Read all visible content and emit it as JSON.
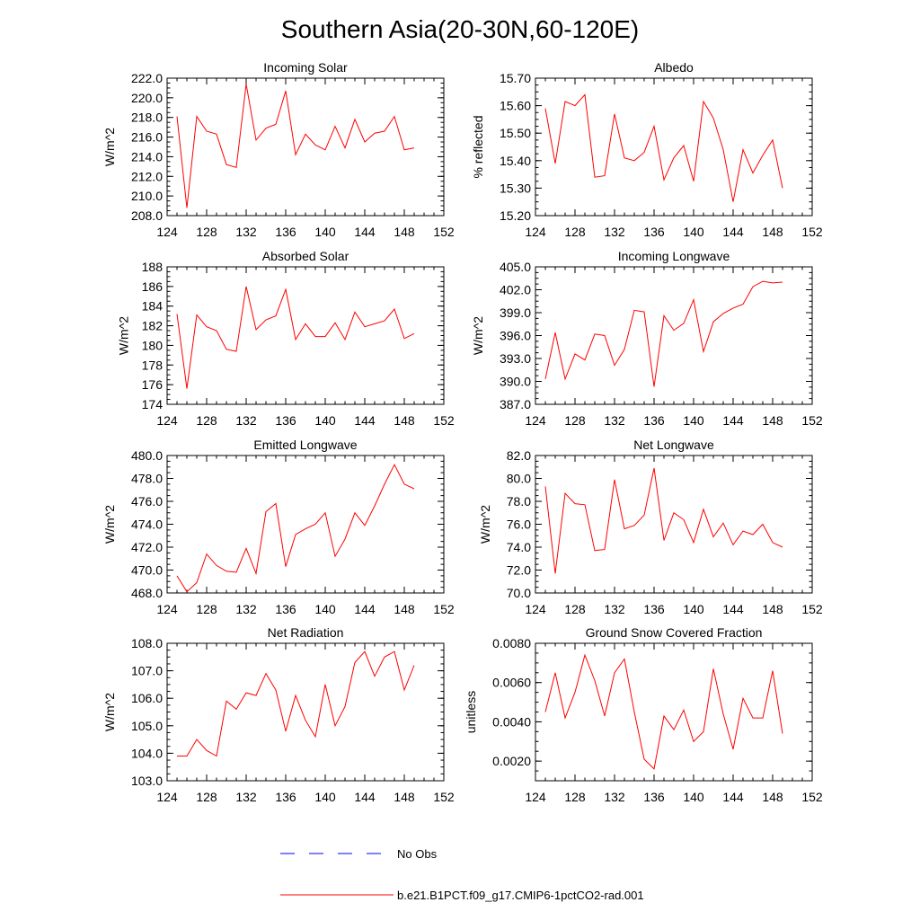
{
  "title": "Southern Asia(20-30N,60-120E)",
  "legend": {
    "placement": "bottom-center",
    "entries": [
      {
        "label": "No Obs",
        "color": "#0000ff",
        "style": "dashed"
      },
      {
        "label": "b.e21.B1PCT.f09_g17.CMIP6-1pctCO2-rad.001",
        "color": "#ff0000",
        "style": "solid"
      }
    ]
  },
  "chart_data": [
    {
      "type": "line",
      "title": "Incoming Solar",
      "xlabel": "",
      "ylabel": "W/m^2",
      "xlim": [
        124,
        152
      ],
      "ylim": [
        208,
        222
      ],
      "xticks": [
        "124",
        "128",
        "132",
        "136",
        "140",
        "144",
        "148",
        "152"
      ],
      "yticks": [
        "208.0",
        "210.0",
        "212.0",
        "214.0",
        "216.0",
        "218.0",
        "220.0",
        "222.0"
      ],
      "grid": false,
      "x": [
        125,
        126,
        127,
        128,
        129,
        130,
        131,
        132,
        133,
        134,
        135,
        136,
        137,
        138,
        139,
        140,
        141,
        142,
        143,
        144,
        145,
        146,
        147,
        148,
        149
      ],
      "series": [
        {
          "name": "b.e21.B1PCT.f09_g17.CMIP6-1pctCO2-rad.001",
          "color": "#ff0000",
          "values": [
            218.1,
            208.8,
            218.1,
            216.6,
            216.3,
            213.2,
            212.9,
            221.4,
            215.7,
            216.9,
            217.3,
            220.7,
            214.2,
            216.3,
            215.2,
            214.7,
            217.1,
            214.9,
            217.8,
            215.5,
            216.4,
            216.6,
            218.1,
            214.7,
            214.9
          ]
        }
      ]
    },
    {
      "type": "line",
      "title": "Albedo",
      "xlabel": "",
      "ylabel": "% reflected",
      "xlim": [
        124,
        152
      ],
      "ylim": [
        15.2,
        15.7
      ],
      "xticks": [
        "124",
        "128",
        "132",
        "136",
        "140",
        "144",
        "148",
        "152"
      ],
      "yticks": [
        "15.20",
        "15.30",
        "15.40",
        "15.50",
        "15.60",
        "15.70"
      ],
      "grid": false,
      "x": [
        125,
        126,
        127,
        128,
        129,
        130,
        131,
        132,
        133,
        134,
        135,
        136,
        137,
        138,
        139,
        140,
        141,
        142,
        143,
        144,
        145,
        146,
        147,
        148,
        149
      ],
      "series": [
        {
          "name": "b.e21.B1PCT.f09_g17.CMIP6-1pctCO2-rad.001",
          "color": "#ff0000",
          "values": [
            15.59,
            15.39,
            15.615,
            15.6,
            15.64,
            15.34,
            15.345,
            15.57,
            15.41,
            15.4,
            15.43,
            15.525,
            15.33,
            15.41,
            15.455,
            15.325,
            15.615,
            15.555,
            15.44,
            15.25,
            15.44,
            15.355,
            15.42,
            15.475,
            15.3
          ]
        }
      ]
    },
    {
      "type": "line",
      "title": "Absorbed Solar",
      "xlabel": "",
      "ylabel": "W/m^2",
      "xlim": [
        124,
        152
      ],
      "ylim": [
        174,
        188
      ],
      "xticks": [
        "124",
        "128",
        "132",
        "136",
        "140",
        "144",
        "148",
        "152"
      ],
      "yticks": [
        "174",
        "176",
        "178",
        "180",
        "182",
        "184",
        "186",
        "188"
      ],
      "grid": false,
      "x": [
        125,
        126,
        127,
        128,
        129,
        130,
        131,
        132,
        133,
        134,
        135,
        136,
        137,
        138,
        139,
        140,
        141,
        142,
        143,
        144,
        145,
        146,
        147,
        148,
        149
      ],
      "series": [
        {
          "name": "b.e21.B1PCT.f09_g17.CMIP6-1pctCO2-rad.001",
          "color": "#ff0000",
          "values": [
            183.2,
            175.6,
            183.1,
            181.9,
            181.5,
            179.6,
            179.4,
            186.0,
            181.6,
            182.6,
            183.0,
            185.7,
            180.6,
            182.2,
            180.9,
            180.9,
            182.3,
            180.6,
            183.4,
            181.9,
            182.2,
            182.5,
            183.7,
            180.7,
            181.2
          ]
        }
      ]
    },
    {
      "type": "line",
      "title": "Incoming Longwave",
      "xlabel": "",
      "ylabel": "W/m^2",
      "xlim": [
        124,
        152
      ],
      "ylim": [
        387,
        405
      ],
      "xticks": [
        "124",
        "128",
        "132",
        "136",
        "140",
        "144",
        "148",
        "152"
      ],
      "yticks": [
        "387.0",
        "390.0",
        "393.0",
        "396.0",
        "399.0",
        "402.0",
        "405.0"
      ],
      "grid": false,
      "x": [
        125,
        126,
        127,
        128,
        129,
        130,
        131,
        132,
        133,
        134,
        135,
        136,
        137,
        138,
        139,
        140,
        141,
        142,
        143,
        144,
        145,
        146,
        147,
        148,
        149
      ],
      "series": [
        {
          "name": "b.e21.B1PCT.f09_g17.CMIP6-1pctCO2-rad.001",
          "color": "#ff0000",
          "values": [
            390.3,
            396.4,
            390.3,
            393.6,
            392.8,
            396.2,
            396.0,
            392.1,
            394.2,
            399.3,
            399.1,
            389.3,
            398.6,
            396.7,
            397.6,
            400.7,
            393.9,
            397.8,
            398.9,
            399.6,
            400.1,
            402.4,
            403.1,
            402.9,
            403.0
          ]
        }
      ]
    },
    {
      "type": "line",
      "title": "Emitted Longwave",
      "xlabel": "",
      "ylabel": "W/m^2",
      "xlim": [
        124,
        152
      ],
      "ylim": [
        468,
        480
      ],
      "xticks": [
        "124",
        "128",
        "132",
        "136",
        "140",
        "144",
        "148",
        "152"
      ],
      "yticks": [
        "468.0",
        "470.0",
        "472.0",
        "474.0",
        "476.0",
        "478.0",
        "480.0"
      ],
      "grid": false,
      "x": [
        125,
        126,
        127,
        128,
        129,
        130,
        131,
        132,
        133,
        134,
        135,
        136,
        137,
        138,
        139,
        140,
        141,
        142,
        143,
        144,
        145,
        146,
        147,
        148,
        149
      ],
      "series": [
        {
          "name": "b.e21.B1PCT.f09_g17.CMIP6-1pctCO2-rad.001",
          "color": "#ff0000",
          "values": [
            469.5,
            468.1,
            468.9,
            471.4,
            470.4,
            469.9,
            469.8,
            471.9,
            469.7,
            475.1,
            475.8,
            470.3,
            473.1,
            473.6,
            474.0,
            475.0,
            471.2,
            472.7,
            475.0,
            473.9,
            475.6,
            477.5,
            479.2,
            477.5,
            477.1
          ]
        }
      ]
    },
    {
      "type": "line",
      "title": "Net Longwave",
      "xlabel": "",
      "ylabel": "W/m^2",
      "xlim": [
        124,
        152
      ],
      "ylim": [
        70,
        82
      ],
      "xticks": [
        "124",
        "128",
        "132",
        "136",
        "140",
        "144",
        "148",
        "152"
      ],
      "yticks": [
        "70.0",
        "72.0",
        "74.0",
        "76.0",
        "78.0",
        "80.0",
        "82.0"
      ],
      "grid": false,
      "x": [
        125,
        126,
        127,
        128,
        129,
        130,
        131,
        132,
        133,
        134,
        135,
        136,
        137,
        138,
        139,
        140,
        141,
        142,
        143,
        144,
        145,
        146,
        147,
        148,
        149
      ],
      "series": [
        {
          "name": "b.e21.B1PCT.f09_g17.CMIP6-1pctCO2-rad.001",
          "color": "#ff0000",
          "values": [
            79.3,
            71.7,
            78.7,
            77.8,
            77.7,
            73.7,
            73.8,
            79.9,
            75.6,
            75.9,
            76.8,
            80.9,
            74.6,
            77.0,
            76.4,
            74.4,
            77.3,
            74.9,
            76.1,
            74.2,
            75.4,
            75.1,
            76.0,
            74.4,
            74.0
          ]
        }
      ]
    },
    {
      "type": "line",
      "title": "Net Radiation",
      "xlabel": "",
      "ylabel": "W/m^2",
      "xlim": [
        124,
        152
      ],
      "ylim": [
        103,
        108
      ],
      "xticks": [
        "124",
        "128",
        "132",
        "136",
        "140",
        "144",
        "148",
        "152"
      ],
      "yticks": [
        "103.0",
        "104.0",
        "105.0",
        "106.0",
        "107.0",
        "108.0"
      ],
      "grid": false,
      "x": [
        125,
        126,
        127,
        128,
        129,
        130,
        131,
        132,
        133,
        134,
        135,
        136,
        137,
        138,
        139,
        140,
        141,
        142,
        143,
        144,
        145,
        146,
        147,
        148,
        149
      ],
      "series": [
        {
          "name": "b.e21.B1PCT.f09_g17.CMIP6-1pctCO2-rad.001",
          "color": "#ff0000",
          "values": [
            103.9,
            103.9,
            104.5,
            104.1,
            103.9,
            105.9,
            105.6,
            106.2,
            106.1,
            106.9,
            106.3,
            104.8,
            106.1,
            105.2,
            104.6,
            106.5,
            105.0,
            105.7,
            107.3,
            107.7,
            106.8,
            107.5,
            107.7,
            106.3,
            107.2
          ]
        }
      ]
    },
    {
      "type": "line",
      "title": "Ground Snow Covered Fraction",
      "xlabel": "",
      "ylabel": "unitless",
      "xlim": [
        124,
        152
      ],
      "ylim": [
        0.001,
        0.008
      ],
      "xticks": [
        "124",
        "128",
        "132",
        "136",
        "140",
        "144",
        "148",
        "152"
      ],
      "yticks": [
        "0.0020",
        "0.0040",
        "0.0060",
        "0.0080"
      ],
      "grid": false,
      "x": [
        125,
        126,
        127,
        128,
        129,
        130,
        131,
        132,
        133,
        134,
        135,
        136,
        137,
        138,
        139,
        140,
        141,
        142,
        143,
        144,
        145,
        146,
        147,
        148,
        149
      ],
      "series": [
        {
          "name": "b.e21.B1PCT.f09_g17.CMIP6-1pctCO2-rad.001",
          "color": "#ff0000",
          "values": [
            0.0045,
            0.0065,
            0.0042,
            0.0055,
            0.0074,
            0.0061,
            0.0043,
            0.0065,
            0.0072,
            0.0045,
            0.0021,
            0.0016,
            0.0043,
            0.0036,
            0.0046,
            0.003,
            0.0035,
            0.0067,
            0.0044,
            0.0026,
            0.0052,
            0.0042,
            0.0042,
            0.0066,
            0.0034
          ]
        }
      ]
    }
  ]
}
